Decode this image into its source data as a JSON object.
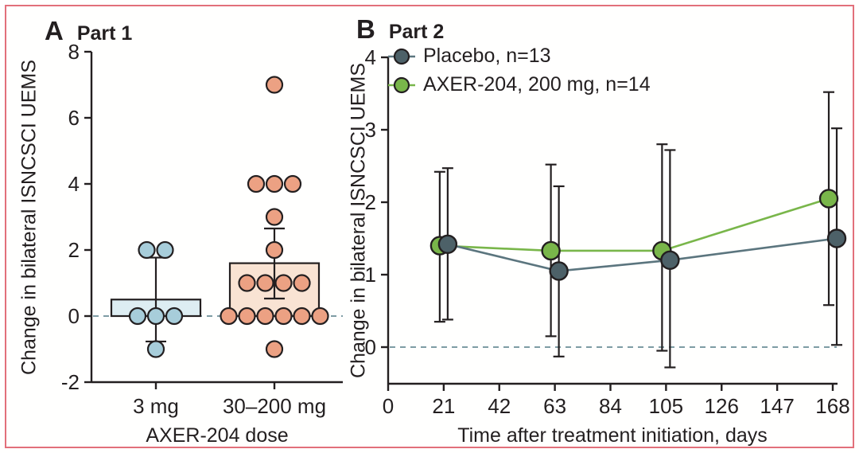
{
  "figure": {
    "border_color": "#e2707b",
    "background": "#fffffe",
    "ink": "#231f20",
    "zero_line_color": "#7e9ca4"
  },
  "chart_data": [
    {
      "type": "bar",
      "subtype": "bar-with-scatter-and-error",
      "label": "A",
      "title": "Part 1",
      "ylabel": "Change in bilateral ISNCSCI UEMS",
      "xlabel": "AXER-204 dose",
      "ylim": [
        -2,
        8
      ],
      "yticks": [
        -2,
        0,
        2,
        4,
        6,
        8
      ],
      "zero_line": 0,
      "grid": false,
      "groups": [
        {
          "name": "3 mg",
          "dot_color": "#a7cdda",
          "bar_fill": "#ddedf2",
          "bar_mean": 0.5,
          "err_low": -0.77,
          "err_high": 1.77,
          "points": [
            2,
            2,
            0,
            0,
            0,
            -1
          ]
        },
        {
          "name": "30–200 mg",
          "dot_color": "#eca183",
          "bar_fill": "#f9e3d3",
          "bar_mean": 1.6,
          "err_low": 0.53,
          "err_high": 2.65,
          "points": [
            7,
            4,
            4,
            4,
            3,
            2,
            1,
            1,
            1,
            1,
            0,
            0,
            0,
            0,
            0,
            0,
            -1
          ]
        }
      ]
    },
    {
      "type": "line",
      "subtype": "line-with-error-bars",
      "label": "B",
      "title": "Part 2",
      "ylabel": "Change in bilateral ISNCSCI UEMS",
      "xlabel": "Time after treatment initiation, days",
      "ylim": [
        0,
        4
      ],
      "yticks": [
        0,
        1,
        2,
        3,
        4
      ],
      "xticks": [
        0,
        21,
        42,
        63,
        84,
        105,
        126,
        147,
        168
      ],
      "zero_line": 0,
      "grid": false,
      "legend_position": "top-left",
      "series": [
        {
          "name": "Placebo, n=13",
          "marker_color": "#4d6168",
          "line_color": "#5b757e",
          "x": [
            21,
            63,
            105,
            168
          ],
          "y": [
            1.42,
            1.05,
            1.2,
            1.5
          ],
          "err_low": [
            0.38,
            -0.13,
            -0.28,
            0.03
          ],
          "err_high": [
            2.47,
            2.22,
            2.72,
            3.02
          ]
        },
        {
          "name": "AXER-204, 200 mg, n=14",
          "marker_color": "#79b64a",
          "line_color": "#79b64a",
          "x": [
            21,
            63,
            105,
            168
          ],
          "y": [
            1.4,
            1.33,
            1.33,
            2.05
          ],
          "err_low": [
            0.35,
            0.15,
            -0.05,
            0.58
          ],
          "err_high": [
            2.42,
            2.52,
            2.8,
            3.52
          ]
        }
      ]
    }
  ]
}
